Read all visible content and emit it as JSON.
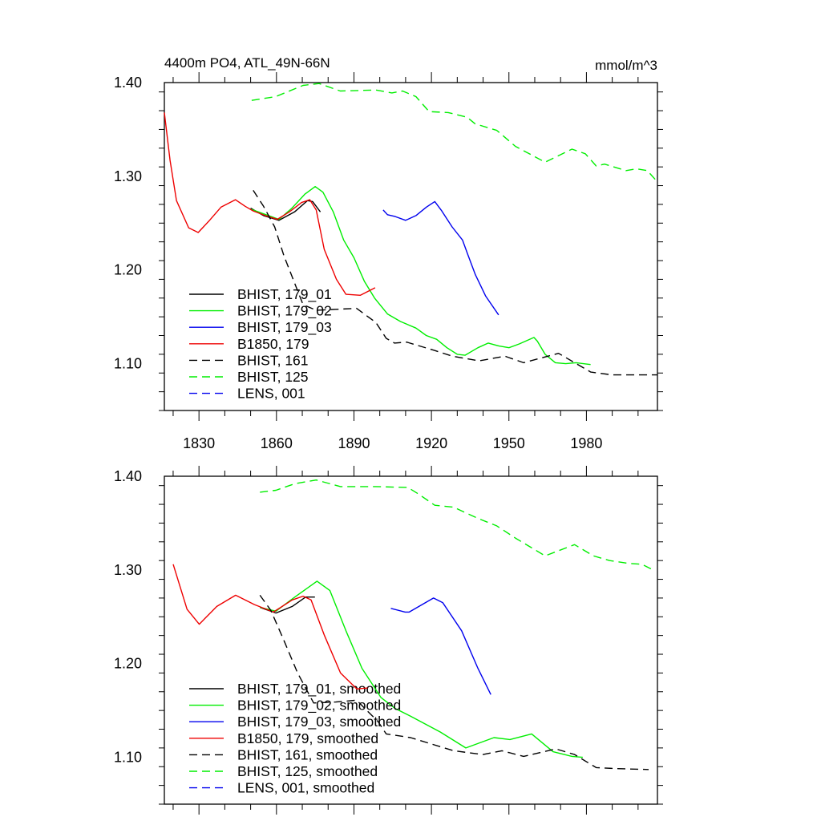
{
  "chart_data": [
    {
      "type": "line",
      "title_left": "4400m PO4, ATL_49N-66N",
      "title_right": "mmol/m^3",
      "xlim": [
        1816.6,
        2007.5
      ],
      "ylim": [
        1.05,
        1.4
      ],
      "xticks": [
        1830,
        1860,
        1890,
        1920,
        1950,
        1980
      ],
      "xtick_labels": [
        "1830",
        "1860",
        "1890",
        "1920",
        "1950",
        "1980"
      ],
      "xminor_step": 10,
      "yticks": [
        1.1,
        1.2,
        1.3,
        1.4
      ],
      "ytick_labels": [
        "1.10",
        "1.20",
        "1.30",
        "1.40"
      ],
      "yminor_step": 0.02,
      "legend_placement": "bottom-left",
      "series": [
        {
          "name": "BHIST, 179_01",
          "color": "#000000",
          "dash": false,
          "points": [
            [
              1850,
              1.266
            ],
            [
              1855,
              1.258
            ],
            [
              1861,
              1.253
            ],
            [
              1867,
              1.262
            ],
            [
              1872,
              1.274
            ],
            [
              1874,
              1.273
            ],
            [
              1877,
              1.262
            ]
          ]
        },
        {
          "name": "BHIST, 179_02",
          "color": "#00ee00",
          "dash": false,
          "points": [
            [
              1850,
              1.265
            ],
            [
              1856,
              1.259
            ],
            [
              1861,
              1.254
            ],
            [
              1866,
              1.266
            ],
            [
              1871,
              1.281
            ],
            [
              1875,
              1.289
            ],
            [
              1878,
              1.283
            ],
            [
              1882,
              1.262
            ],
            [
              1886,
              1.232
            ],
            [
              1890,
              1.213
            ],
            [
              1894,
              1.188
            ],
            [
              1898,
              1.17
            ],
            [
              1903,
              1.153
            ],
            [
              1908,
              1.145
            ],
            [
              1914,
              1.138
            ],
            [
              1918,
              1.13
            ],
            [
              1922,
              1.126
            ],
            [
              1926,
              1.117
            ],
            [
              1930,
              1.11
            ],
            [
              1933,
              1.109
            ],
            [
              1938,
              1.117
            ],
            [
              1942,
              1.122
            ],
            [
              1946,
              1.119
            ],
            [
              1950,
              1.117
            ],
            [
              1954,
              1.121
            ],
            [
              1959.7,
              1.128
            ],
            [
              1961,
              1.124
            ],
            [
              1964,
              1.11
            ],
            [
              1968,
              1.101
            ],
            [
              1972,
              1.1
            ],
            [
              1976,
              1.101
            ],
            [
              1981.6,
              1.099
            ]
          ]
        },
        {
          "name": "BHIST, 179_03",
          "color": "#0000ee",
          "dash": false,
          "points": [
            [
              1901.3,
              1.264
            ],
            [
              1903,
              1.259
            ],
            [
              1906,
              1.257
            ],
            [
              1910,
              1.253
            ],
            [
              1914,
              1.258
            ],
            [
              1918,
              1.267
            ],
            [
              1921.3,
              1.273
            ],
            [
              1924,
              1.263
            ],
            [
              1928,
              1.246
            ],
            [
              1932,
              1.232
            ],
            [
              1934,
              1.217
            ],
            [
              1937,
              1.195
            ],
            [
              1941,
              1.172
            ],
            [
              1946,
              1.152
            ]
          ]
        },
        {
          "name": "B1850, 179",
          "color": "#ee0000",
          "dash": false,
          "points": [
            [
              1816.6,
              1.368
            ],
            [
              1818.8,
              1.317
            ],
            [
              1821.3,
              1.274
            ],
            [
              1826,
              1.245
            ],
            [
              1829.7,
              1.24
            ],
            [
              1833.8,
              1.252
            ],
            [
              1838.5,
              1.267
            ],
            [
              1844.1,
              1.275
            ],
            [
              1847.9,
              1.268
            ],
            [
              1851,
              1.263
            ],
            [
              1855.7,
              1.258
            ],
            [
              1860.3,
              1.254
            ],
            [
              1865,
              1.262
            ],
            [
              1869.7,
              1.272
            ],
            [
              1872.9,
              1.275
            ],
            [
              1875.4,
              1.264
            ],
            [
              1878.5,
              1.222
            ],
            [
              1883.2,
              1.19
            ],
            [
              1886.9,
              1.174
            ],
            [
              1892.5,
              1.173
            ],
            [
              1898.2,
              1.181
            ]
          ]
        },
        {
          "name": "BHIST, 161",
          "color": "#000000",
          "dash": true,
          "points": [
            [
              1851,
              1.285
            ],
            [
              1855,
              1.268
            ],
            [
              1859.3,
              1.246
            ],
            [
              1862.9,
              1.215
            ],
            [
              1866.6,
              1.189
            ],
            [
              1870.3,
              1.163
            ],
            [
              1875.4,
              1.157
            ],
            [
              1883,
              1.158
            ],
            [
              1891,
              1.159
            ],
            [
              1898.5,
              1.144
            ],
            [
              1902.5,
              1.127
            ],
            [
              1905.7,
              1.122
            ],
            [
              1910.4,
              1.123
            ],
            [
              1921.3,
              1.114
            ],
            [
              1928,
              1.108
            ],
            [
              1938.5,
              1.103
            ],
            [
              1948.4,
              1.108
            ],
            [
              1955.7,
              1.101
            ],
            [
              1969.2,
              1.111
            ],
            [
              1981.7,
              1.091
            ],
            [
              1990,
              1.088
            ],
            [
              1996.3,
              1.088
            ],
            [
              2007.5,
              1.088
            ]
          ]
        },
        {
          "name": "BHIST, 125",
          "color": "#00ee00",
          "dash": true,
          "points": [
            [
              1850.4,
              1.381
            ],
            [
              1859.7,
              1.385
            ],
            [
              1870.3,
              1.397
            ],
            [
              1876.5,
              1.399
            ],
            [
              1884.7,
              1.391
            ],
            [
              1898.5,
              1.392
            ],
            [
              1904.7,
              1.389
            ],
            [
              1908.8,
              1.391
            ],
            [
              1914,
              1.385
            ],
            [
              1919.1,
              1.369
            ],
            [
              1926.5,
              1.368
            ],
            [
              1933.8,
              1.363
            ],
            [
              1936.9,
              1.356
            ],
            [
              1945.3,
              1.349
            ],
            [
              1952.5,
              1.332
            ],
            [
              1964,
              1.315
            ],
            [
              1974.4,
              1.329
            ],
            [
              1979.6,
              1.324
            ],
            [
              1983.8,
              1.311
            ],
            [
              1987,
              1.313
            ],
            [
              1995.3,
              1.306
            ],
            [
              1999.4,
              1.308
            ],
            [
              2003.6,
              1.306
            ],
            [
              2007.5,
              1.294
            ]
          ]
        },
        {
          "name": "LENS, 001",
          "color": "#0000ee",
          "dash": true,
          "points": []
        }
      ]
    },
    {
      "type": "line",
      "xlim": [
        1816.6,
        2007.5
      ],
      "ylim": [
        1.05,
        1.4
      ],
      "xticks": [
        1830,
        1860,
        1890,
        1920,
        1950,
        1980
      ],
      "xminor_step": 10,
      "yticks": [
        1.1,
        1.2,
        1.3,
        1.4
      ],
      "ytick_labels": [
        "1.10",
        "1.20",
        "1.30",
        "1.40"
      ],
      "yminor_step": 0.02,
      "legend_placement": "bottom-left",
      "series": [
        {
          "name": "BHIST, 179_01, smoothed",
          "color": "#000000",
          "dash": false,
          "points": [
            [
              1853.6,
              1.26
            ],
            [
              1859.8,
              1.254
            ],
            [
              1866.1,
              1.261
            ],
            [
              1871.3,
              1.271
            ],
            [
              1874.9,
              1.271
            ]
          ]
        },
        {
          "name": "BHIST, 179_02, smoothed",
          "color": "#00ee00",
          "dash": false,
          "points": [
            [
              1853.6,
              1.26
            ],
            [
              1859.8,
              1.256
            ],
            [
              1867.1,
              1.271
            ],
            [
              1875.7,
              1.288
            ],
            [
              1880.7,
              1.278
            ],
            [
              1886.9,
              1.235
            ],
            [
              1893.1,
              1.195
            ],
            [
              1900.4,
              1.164
            ],
            [
              1906,
              1.152
            ],
            [
              1911.9,
              1.144
            ],
            [
              1923.4,
              1.127
            ],
            [
              1933.3,
              1.11
            ],
            [
              1944.2,
              1.121
            ],
            [
              1950.4,
              1.119
            ],
            [
              1958.8,
              1.125
            ],
            [
              1967.1,
              1.106
            ],
            [
              1974.4,
              1.101
            ],
            [
              1978.6,
              1.1
            ]
          ]
        },
        {
          "name": "BHIST, 179_03, smoothed",
          "color": "#0000ee",
          "dash": false,
          "points": [
            [
              1904.3,
              1.259
            ],
            [
              1909.8,
              1.255
            ],
            [
              1911.4,
              1.255
            ],
            [
              1920.8,
              1.27
            ],
            [
              1924.4,
              1.265
            ],
            [
              1931.7,
              1.235
            ],
            [
              1938,
              1.195
            ],
            [
              1943,
              1.167
            ]
          ]
        },
        {
          "name": "B1850, 179, smoothed",
          "color": "#ee0000",
          "dash": false,
          "points": [
            [
              1820,
              1.306
            ],
            [
              1825.4,
              1.258
            ],
            [
              1830.1,
              1.242
            ],
            [
              1836.9,
              1.261
            ],
            [
              1844.2,
              1.273
            ],
            [
              1851.5,
              1.263
            ],
            [
              1858.8,
              1.255
            ],
            [
              1866.1,
              1.268
            ],
            [
              1870.3,
              1.272
            ],
            [
              1873.4,
              1.268
            ],
            [
              1878.6,
              1.23
            ],
            [
              1884.8,
              1.19
            ],
            [
              1891.1,
              1.173
            ],
            [
              1895.3,
              1.174
            ]
          ]
        },
        {
          "name": "BHIST, 161, smoothed",
          "color": "#000000",
          "dash": true,
          "points": [
            [
              1853.6,
              1.273
            ],
            [
              1857.8,
              1.257
            ],
            [
              1863,
              1.224
            ],
            [
              1868.2,
              1.19
            ],
            [
              1874.4,
              1.158
            ],
            [
              1883,
              1.159
            ],
            [
              1891,
              1.161
            ],
            [
              1899.4,
              1.138
            ],
            [
              1902.5,
              1.125
            ],
            [
              1911.9,
              1.121
            ],
            [
              1928.6,
              1.107
            ],
            [
              1940,
              1.103
            ],
            [
              1947.3,
              1.107
            ],
            [
              1955.7,
              1.101
            ],
            [
              1968.2,
              1.109
            ],
            [
              1975.4,
              1.103
            ],
            [
              1983.8,
              1.089
            ],
            [
              1991.1,
              1.088
            ],
            [
              2004.1,
              1.087
            ]
          ]
        },
        {
          "name": "BHIST, 125, smoothed",
          "color": "#00ee00",
          "dash": true,
          "points": [
            [
              1853.6,
              1.383
            ],
            [
              1859.8,
              1.385
            ],
            [
              1867.1,
              1.392
            ],
            [
              1875.4,
              1.396
            ],
            [
              1884.8,
              1.389
            ],
            [
              1898.4,
              1.389
            ],
            [
              1910.9,
              1.388
            ],
            [
              1915,
              1.381
            ],
            [
              1921.3,
              1.369
            ],
            [
              1928.6,
              1.367
            ],
            [
              1938,
              1.355
            ],
            [
              1945.3,
              1.347
            ],
            [
              1952.5,
              1.334
            ],
            [
              1964,
              1.315
            ],
            [
              1975.4,
              1.327
            ],
            [
              1982.7,
              1.315
            ],
            [
              1989,
              1.31
            ],
            [
              1996.3,
              1.307
            ],
            [
              2001.5,
              1.306
            ],
            [
              2005.1,
              1.301
            ]
          ]
        },
        {
          "name": "LENS, 001, smoothed",
          "color": "#0000ee",
          "dash": true,
          "points": []
        }
      ]
    }
  ]
}
